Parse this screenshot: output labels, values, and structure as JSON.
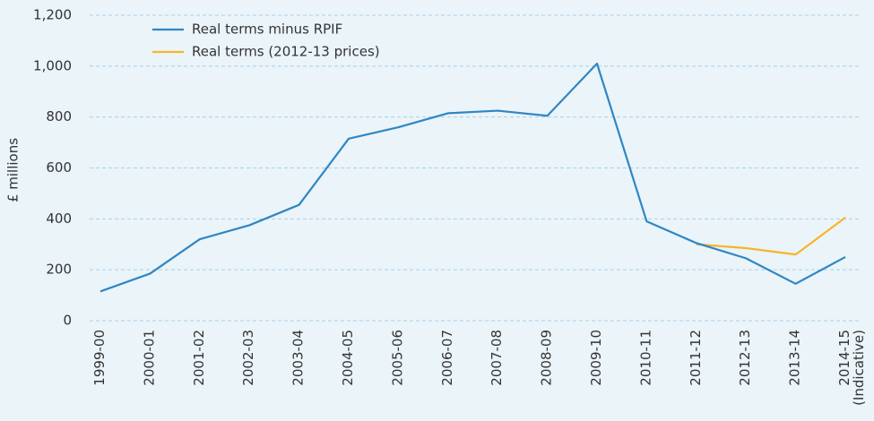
{
  "chart_data": {
    "type": "line",
    "categories": [
      "1999-00",
      "2000-01",
      "2001-02",
      "2002-03",
      "2003-04",
      "2004-05",
      "2005-06",
      "2006-07",
      "2007-08",
      "2008-09",
      "2009-10",
      "2010-11",
      "2011-12",
      "2012-13",
      "2013-14",
      "2014-15 (Indicative)"
    ],
    "series": [
      {
        "name": "Real terms minus RPIF",
        "color": "#2f86c4",
        "values": [
          115,
          185,
          320,
          375,
          455,
          715,
          760,
          815,
          825,
          805,
          1010,
          390,
          305,
          245,
          145,
          250
        ]
      },
      {
        "name": "Real terms (2012-13 prices)",
        "color": "#f7b52b",
        "values": [
          null,
          null,
          null,
          null,
          null,
          null,
          null,
          null,
          null,
          null,
          null,
          null,
          300,
          285,
          260,
          405
        ]
      }
    ],
    "y_label": "£ millions",
    "ylim": [
      0,
      1200
    ],
    "yticks": [
      0,
      200,
      400,
      600,
      800,
      {
        "value": 1000,
        "label": "1,000"
      },
      {
        "value": 1200,
        "label": "1,200"
      }
    ],
    "grid": true,
    "legend": "top-left"
  }
}
